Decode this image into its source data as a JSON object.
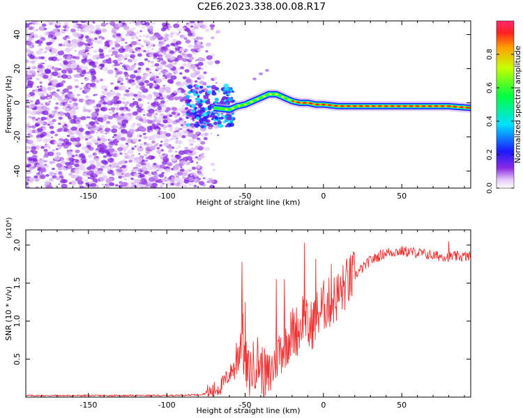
{
  "title": "C2E6.2023.338.00.08.R17",
  "chart_data": [
    {
      "type": "heatmap",
      "title": "",
      "xlabel": "Height of straight line (km)",
      "ylabel": "Frequency (Hz)",
      "xlim": [
        -190,
        94
      ],
      "ylim": [
        -50,
        48
      ],
      "xticks": [
        -150,
        -100,
        -50,
        0,
        50
      ],
      "yticks": [
        -40,
        -20,
        0,
        20,
        40
      ],
      "colorbar": {
        "label": "Normalized spectral amplitude",
        "range": [
          0,
          1
        ],
        "ticks": [
          "0.0",
          "0.2",
          "0.4",
          "0.6",
          "0.8"
        ]
      },
      "regions": [
        {
          "description": "diffuse low-amplitude noise",
          "x_range": [
            -190,
            -77
          ],
          "y_range": [
            -50,
            48
          ],
          "amplitude": 0.1
        },
        {
          "description": "transition blobs",
          "x_range": [
            -87,
            -57
          ],
          "y_range": [
            -14,
            10
          ],
          "amplitude": 0.3
        },
        {
          "description": "ridge trace",
          "x_range": [
            -57,
            94
          ],
          "amplitude": 0.9
        }
      ],
      "ridge": {
        "x": [
          -70,
          -60,
          -55,
          -50,
          -45,
          -40,
          -35,
          -30,
          -25,
          -20,
          -15,
          -10,
          -5,
          0,
          10,
          20,
          40,
          60,
          80,
          94
        ],
        "y": [
          -3,
          -4,
          -2,
          -1,
          1,
          3,
          5,
          5,
          3,
          1,
          0,
          0,
          -1,
          -1,
          -2,
          -2,
          -2,
          -2,
          -2,
          -3
        ]
      }
    },
    {
      "type": "line",
      "title": "",
      "xlabel": "Height of straight line (km)",
      "ylabel": "SNR (10 * v/v)",
      "yscale_label": "(x10⁴)",
      "xlim": [
        -190,
        94
      ],
      "ylim": [
        0,
        2.2
      ],
      "xticks": [
        -150,
        -100,
        -50,
        0,
        50
      ],
      "yticks": [
        0.5,
        1.0,
        1.5,
        2.0
      ],
      "ytick_labels": [
        "0.5",
        "1.0",
        "1.5",
        "2.0"
      ],
      "series": [
        {
          "color": "#ee3030",
          "x": [
            -190,
            -150,
            -100,
            -80,
            -72,
            -65,
            -60,
            -57,
            -55,
            -53,
            -52,
            -51,
            -50,
            -48,
            -45,
            -42,
            -38,
            -35,
            -32,
            -30,
            -25,
            -20,
            -15,
            -12,
            -10,
            -5,
            0,
            5,
            10,
            15,
            20,
            25,
            30,
            40,
            50,
            60,
            70,
            80,
            90,
            94
          ],
          "y": [
            0.02,
            0.02,
            0.02,
            0.03,
            0.06,
            0.15,
            0.3,
            0.4,
            0.55,
            0.7,
            1.0,
            0.6,
            0.45,
            0.3,
            0.4,
            0.5,
            0.3,
            0.25,
            0.4,
            0.55,
            0.7,
            0.85,
            0.9,
            1.2,
            0.85,
            1.05,
            1.2,
            1.25,
            1.35,
            1.5,
            1.6,
            1.7,
            1.8,
            1.9,
            1.92,
            1.9,
            1.86,
            1.85,
            1.85,
            1.85
          ]
        }
      ],
      "spikes": [
        {
          "x": -52,
          "y": 1.78
        },
        {
          "x": -50,
          "y": 1.25
        },
        {
          "x": -30,
          "y": 1.55
        },
        {
          "x": -25,
          "y": 1.55
        },
        {
          "x": -12,
          "y": 2.03
        },
        {
          "x": -5,
          "y": 1.82
        },
        {
          "x": 5,
          "y": 1.75
        },
        {
          "x": 80,
          "y": 2.05
        }
      ]
    }
  ]
}
